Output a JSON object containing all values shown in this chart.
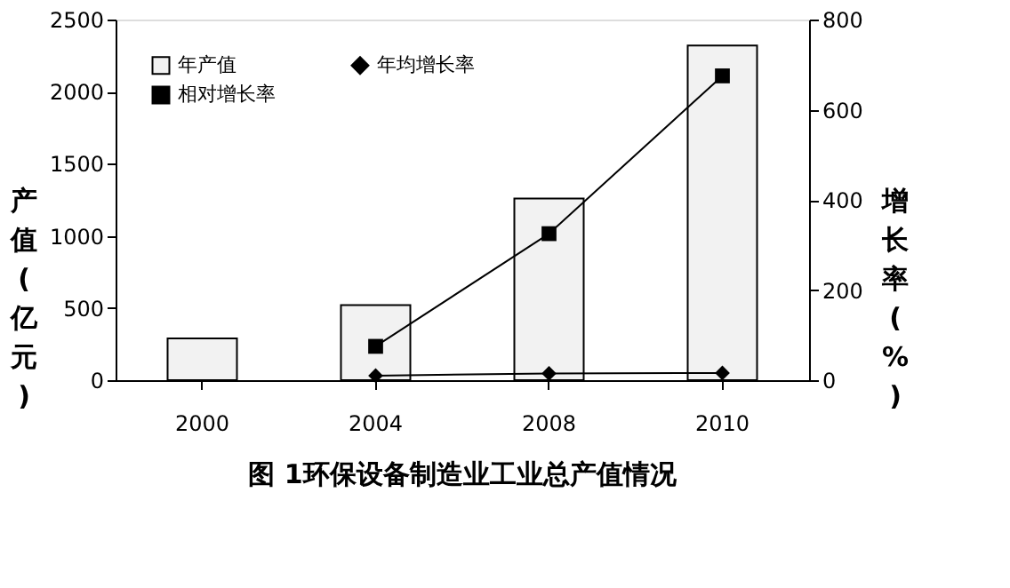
{
  "chart_data": {
    "type": "bar",
    "title": "图 1环保设备制造业工业总产值情况",
    "ylabel": "产值(亿元)",
    "y2label": "增长率(%)",
    "categories": [
      "2000",
      "2004",
      "2008",
      "2010"
    ],
    "series": [
      {
        "name": "年产值",
        "type": "bar",
        "color": "#f2f2f2",
        "values": [
          290,
          520,
          1260,
          2320
        ]
      },
      {
        "name": "相对增长率",
        "type": "line",
        "axis": "y2",
        "marker": "square",
        "color": "#000000",
        "values": [
          null,
          75,
          325,
          675
        ]
      },
      {
        "name": "年均增长率",
        "type": "line",
        "axis": "y2",
        "marker": "diamond",
        "color": "#000000",
        "values": [
          null,
          10,
          15,
          16
        ]
      }
    ],
    "ylim": [
      0,
      2500
    ],
    "yticks": [
      0,
      500,
      1000,
      1500,
      2000,
      2500
    ],
    "y2lim": [
      0,
      800
    ],
    "y2ticks": [
      0,
      200,
      400,
      600,
      800
    ],
    "grid": false,
    "legend": "top left"
  }
}
